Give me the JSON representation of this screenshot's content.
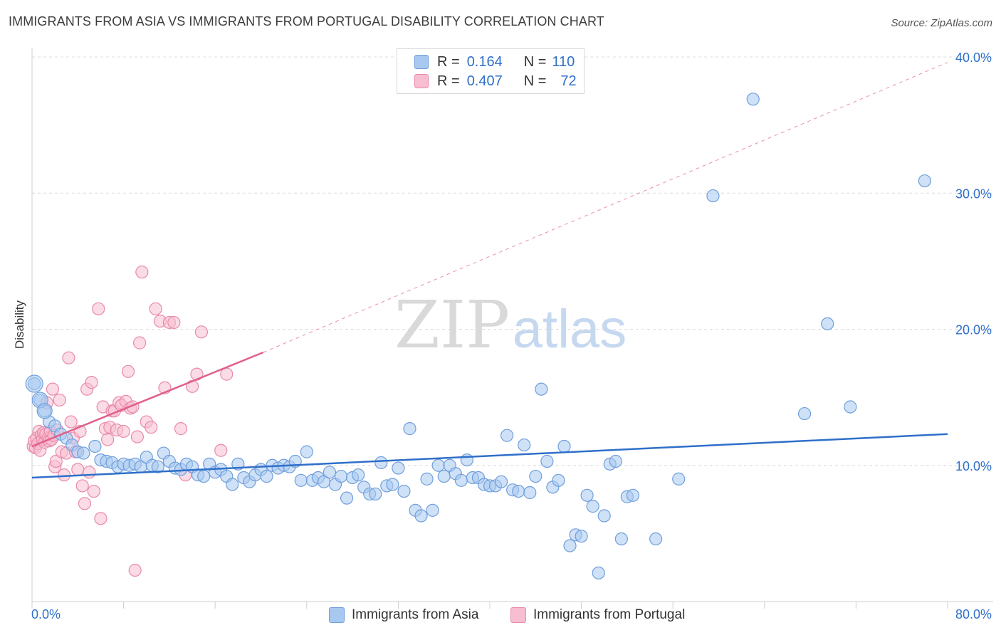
{
  "title": "IMMIGRANTS FROM ASIA VS IMMIGRANTS FROM PORTUGAL DISABILITY CORRELATION CHART",
  "source": "Source: ZipAtlas.com",
  "watermark": {
    "part1": "ZIP",
    "part2": "atlas"
  },
  "legend": {
    "rows": [
      {
        "r_label": "R =",
        "r_value": "0.164",
        "n_label": "N =",
        "n_value": "110",
        "color": "#a8c8f0",
        "border": "#6f9fdc"
      },
      {
        "r_label": "R =",
        "r_value": "0.407",
        "n_label": "N =",
        "n_value": "72",
        "color": "#f7bdd0",
        "border": "#e98aa9"
      }
    ]
  },
  "bottom_legend": [
    {
      "label": "Immigrants from Asia",
      "color": "#a8c8f0",
      "border": "#6f9fdc"
    },
    {
      "label": "Immigrants from Portugal",
      "color": "#f7bdd0",
      "border": "#e98aa9"
    }
  ],
  "chart_data": {
    "type": "scatter",
    "title": "IMMIGRANTS FROM ASIA VS IMMIGRANTS FROM PORTUGAL DISABILITY CORRELATION CHART",
    "xlabel": "",
    "ylabel": "Disability",
    "xlim": [
      0,
      80
    ],
    "ylim": [
      0,
      40
    ],
    "x_tick_labels": [
      "0.0%",
      "80.0%"
    ],
    "y_ticks": [
      10,
      20,
      30,
      40
    ],
    "y_tick_labels": [
      "10.0%",
      "20.0%",
      "30.0%",
      "40.0%"
    ],
    "grid": true,
    "legend_position": "top-center",
    "colors": {
      "asia_point": "#a8c8f0",
      "asia_stroke": "#6f9fdc",
      "asia_line": "#2f6fc9",
      "portugal_point": "#f7bdd0",
      "portugal_stroke": "#e98aa9",
      "portugal_line": "#e0608b",
      "axis_label": "#2f6fc9"
    },
    "series": [
      {
        "name": "Immigrants from Asia",
        "r": 0.164,
        "n": 110,
        "trend": {
          "x": [
            0,
            80
          ],
          "y": [
            9.1,
            12.3
          ]
        },
        "points": [
          [
            0.2,
            16.0
          ],
          [
            0.7,
            14.8
          ],
          [
            1.1,
            14.0
          ],
          [
            1.5,
            13.2
          ],
          [
            2.0,
            12.9
          ],
          [
            2.5,
            12.3
          ],
          [
            3.0,
            12.0
          ],
          [
            3.5,
            11.5
          ],
          [
            4.0,
            11.0
          ],
          [
            4.5,
            10.9
          ],
          [
            5.5,
            11.4
          ],
          [
            6.0,
            10.4
          ],
          [
            6.5,
            10.3
          ],
          [
            7.0,
            10.2
          ],
          [
            7.5,
            9.9
          ],
          [
            8.0,
            10.1
          ],
          [
            8.5,
            10.0
          ],
          [
            9.0,
            10.1
          ],
          [
            9.5,
            9.9
          ],
          [
            10.0,
            10.6
          ],
          [
            10.5,
            10.0
          ],
          [
            11.0,
            9.9
          ],
          [
            11.5,
            10.9
          ],
          [
            12.0,
            10.3
          ],
          [
            12.5,
            9.8
          ],
          [
            13.0,
            9.7
          ],
          [
            13.5,
            10.1
          ],
          [
            14.0,
            9.9
          ],
          [
            14.5,
            9.3
          ],
          [
            15.0,
            9.2
          ],
          [
            15.5,
            10.1
          ],
          [
            16.0,
            9.5
          ],
          [
            16.5,
            9.7
          ],
          [
            17.0,
            9.2
          ],
          [
            17.5,
            8.6
          ],
          [
            18.0,
            10.1
          ],
          [
            18.5,
            9.1
          ],
          [
            19.0,
            8.8
          ],
          [
            19.5,
            9.3
          ],
          [
            20.0,
            9.7
          ],
          [
            20.5,
            9.2
          ],
          [
            21.0,
            10.0
          ],
          [
            21.5,
            9.8
          ],
          [
            22.0,
            10.0
          ],
          [
            22.5,
            9.9
          ],
          [
            23.0,
            10.3
          ],
          [
            23.5,
            8.9
          ],
          [
            24.0,
            11.0
          ],
          [
            24.5,
            8.9
          ],
          [
            25.0,
            9.1
          ],
          [
            25.5,
            8.8
          ],
          [
            26.0,
            9.5
          ],
          [
            26.5,
            8.6
          ],
          [
            27.0,
            9.2
          ],
          [
            27.5,
            7.6
          ],
          [
            28.0,
            9.1
          ],
          [
            28.5,
            9.3
          ],
          [
            29.0,
            8.4
          ],
          [
            29.5,
            7.9
          ],
          [
            30.0,
            7.9
          ],
          [
            30.5,
            10.2
          ],
          [
            31.0,
            8.5
          ],
          [
            31.5,
            8.6
          ],
          [
            32.0,
            9.8
          ],
          [
            32.5,
            8.1
          ],
          [
            33.0,
            12.7
          ],
          [
            33.5,
            6.7
          ],
          [
            34.0,
            6.3
          ],
          [
            34.5,
            9.0
          ],
          [
            35.0,
            6.7
          ],
          [
            35.5,
            10.0
          ],
          [
            36.0,
            9.2
          ],
          [
            36.5,
            10.0
          ],
          [
            37.0,
            9.4
          ],
          [
            37.5,
            8.9
          ],
          [
            38.0,
            10.4
          ],
          [
            38.5,
            9.1
          ],
          [
            39.0,
            9.1
          ],
          [
            39.5,
            8.6
          ],
          [
            40.0,
            8.5
          ],
          [
            40.5,
            8.5
          ],
          [
            41.0,
            8.8
          ],
          [
            41.5,
            12.2
          ],
          [
            42.0,
            8.2
          ],
          [
            42.5,
            8.1
          ],
          [
            43.0,
            11.5
          ],
          [
            43.5,
            8.0
          ],
          [
            44.0,
            9.2
          ],
          [
            44.5,
            15.6
          ],
          [
            45.0,
            10.3
          ],
          [
            45.5,
            8.4
          ],
          [
            46.0,
            8.9
          ],
          [
            46.5,
            11.4
          ],
          [
            47.0,
            4.1
          ],
          [
            47.5,
            4.9
          ],
          [
            48.0,
            4.8
          ],
          [
            48.5,
            7.8
          ],
          [
            49.0,
            7.0
          ],
          [
            49.5,
            2.1
          ],
          [
            50.0,
            6.3
          ],
          [
            50.5,
            10.1
          ],
          [
            51.0,
            10.3
          ],
          [
            51.5,
            4.6
          ],
          [
            52.0,
            7.7
          ],
          [
            52.5,
            7.8
          ],
          [
            54.5,
            4.6
          ],
          [
            56.5,
            9.0
          ],
          [
            59.5,
            29.8
          ],
          [
            63.0,
            36.9
          ],
          [
            67.5,
            13.8
          ],
          [
            69.5,
            20.4
          ],
          [
            71.5,
            14.3
          ],
          [
            78.0,
            30.9
          ]
        ]
      },
      {
        "name": "Immigrants from Portugal",
        "r": 0.407,
        "n": 72,
        "trend": {
          "x": [
            0,
            20.2
          ],
          "y": [
            11.4,
            18.3
          ]
        },
        "trend_extended": {
          "x": [
            20.2,
            80
          ],
          "y": [
            18.3,
            39.6
          ]
        },
        "points": [
          [
            0.1,
            11.4
          ],
          [
            0.2,
            11.8
          ],
          [
            0.3,
            11.3
          ],
          [
            0.4,
            12.0
          ],
          [
            0.5,
            11.6
          ],
          [
            0.6,
            12.5
          ],
          [
            0.7,
            11.1
          ],
          [
            0.8,
            12.2
          ],
          [
            0.9,
            11.9
          ],
          [
            1.0,
            12.4
          ],
          [
            1.1,
            11.7
          ],
          [
            1.2,
            12.3
          ],
          [
            1.3,
            14.6
          ],
          [
            1.4,
            12.0
          ],
          [
            1.5,
            11.8
          ],
          [
            1.6,
            12.5
          ],
          [
            1.7,
            11.9
          ],
          [
            1.8,
            15.6
          ],
          [
            1.9,
            12.2
          ],
          [
            2.0,
            9.9
          ],
          [
            2.1,
            10.3
          ],
          [
            2.2,
            12.6
          ],
          [
            2.4,
            14.8
          ],
          [
            2.6,
            11.0
          ],
          [
            2.8,
            9.3
          ],
          [
            3.0,
            10.9
          ],
          [
            3.2,
            17.9
          ],
          [
            3.4,
            13.2
          ],
          [
            3.6,
            12.0
          ],
          [
            3.8,
            11.0
          ],
          [
            4.0,
            9.7
          ],
          [
            4.2,
            12.5
          ],
          [
            4.4,
            8.5
          ],
          [
            4.6,
            7.2
          ],
          [
            4.8,
            15.6
          ],
          [
            5.0,
            9.5
          ],
          [
            5.2,
            16.1
          ],
          [
            5.4,
            8.1
          ],
          [
            5.8,
            21.5
          ],
          [
            6.0,
            6.1
          ],
          [
            6.2,
            14.3
          ],
          [
            6.4,
            12.7
          ],
          [
            6.6,
            11.9
          ],
          [
            6.8,
            12.8
          ],
          [
            7.0,
            14.0
          ],
          [
            7.2,
            14.0
          ],
          [
            7.4,
            12.6
          ],
          [
            7.6,
            14.6
          ],
          [
            7.8,
            14.4
          ],
          [
            8.0,
            12.5
          ],
          [
            8.2,
            14.7
          ],
          [
            8.4,
            16.9
          ],
          [
            8.6,
            14.2
          ],
          [
            8.8,
            14.3
          ],
          [
            9.0,
            2.3
          ],
          [
            9.2,
            12.1
          ],
          [
            9.4,
            19.0
          ],
          [
            9.6,
            24.2
          ],
          [
            10.0,
            13.2
          ],
          [
            10.4,
            12.8
          ],
          [
            10.8,
            21.5
          ],
          [
            11.2,
            20.6
          ],
          [
            11.6,
            15.7
          ],
          [
            12.0,
            20.5
          ],
          [
            12.4,
            20.5
          ],
          [
            13.0,
            12.7
          ],
          [
            13.4,
            9.3
          ],
          [
            14.0,
            15.8
          ],
          [
            14.4,
            16.7
          ],
          [
            14.8,
            19.8
          ],
          [
            16.5,
            11.1
          ],
          [
            17.0,
            16.7
          ]
        ]
      }
    ]
  }
}
